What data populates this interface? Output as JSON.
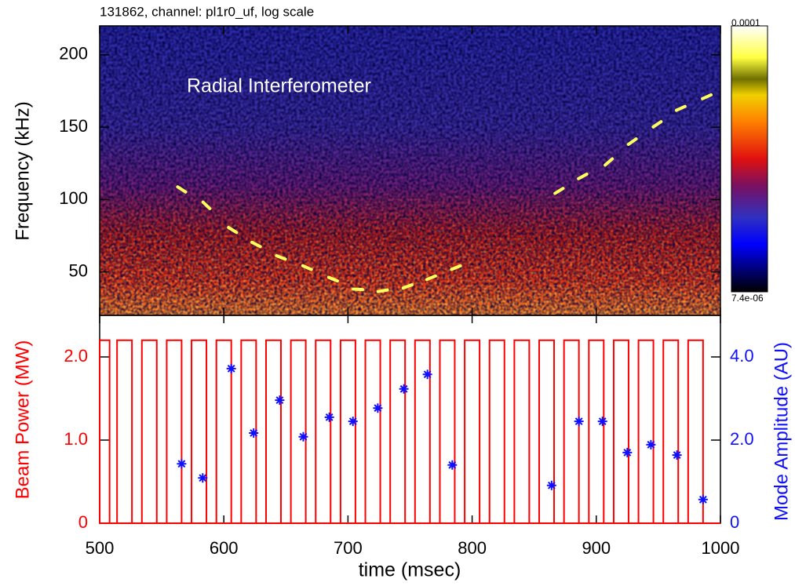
{
  "chart_data": [
    {
      "type": "spectrogram",
      "title": "131862, channel: pl1r0_uf, log scale",
      "annotation": "Radial Interferometer",
      "ylabel": "Frequency (kHz)",
      "xlim": [
        500,
        1000
      ],
      "xticks": [
        500,
        600,
        700,
        800,
        900,
        1000
      ],
      "ylim": [
        20,
        220
      ],
      "yticks": [
        50,
        100,
        150,
        200
      ],
      "colorbar_ticks": [
        {
          "value": 7.4e-06,
          "label": "7.4e-06"
        },
        0.0001
      ],
      "traces": [
        {
          "color": "#ffff60",
          "x": [
            566,
            586,
            607,
            626,
            646,
            667,
            688,
            708,
            728,
            748,
            767,
            787
          ],
          "values": [
            107,
            96,
            79,
            69,
            60,
            53,
            45,
            38,
            37,
            40,
            46,
            53
          ]
        },
        {
          "color": "#ffff60",
          "x": [
            870,
            889,
            910,
            929,
            949,
            968,
            989
          ],
          "values": [
            106,
            116,
            126,
            140,
            152,
            163,
            171
          ]
        }
      ]
    },
    {
      "type": "pulse_scatter",
      "xlabel": "time (msec)",
      "ylabel": "Beam Power (MW)",
      "y2label": "Mode Amplitude (AU)",
      "xlim": [
        500,
        1000
      ],
      "xticks": [
        500,
        600,
        700,
        800,
        900,
        1000
      ],
      "ylim": [
        0,
        2.5
      ],
      "yticks": [
        0,
        {
          "value": 1,
          "label": "1.0"
        },
        {
          "value": 2,
          "label": "2.0"
        }
      ],
      "y2lim": [
        0,
        5
      ],
      "y2ticks": [
        0,
        {
          "value": 2,
          "label": "2.0"
        },
        {
          "value": 4,
          "label": "4.0"
        }
      ],
      "series": [
        {
          "color": "#ff0000",
          "x_on": [
            500,
            514,
            534,
            554,
            574,
            594,
            614,
            634,
            654,
            674,
            694,
            714,
            734,
            754,
            774,
            794,
            814,
            834,
            854,
            874,
            894,
            914,
            934,
            954,
            974
          ],
          "x_off": [
            508,
            526,
            546,
            566,
            586,
            606,
            626,
            646,
            666,
            686,
            706,
            726,
            746,
            766,
            786,
            806,
            826,
            846,
            866,
            886,
            906,
            926,
            946,
            966,
            986
          ],
          "values": [
            2.2,
            2.2,
            2.2,
            2.2,
            2.2,
            2.2,
            2.2,
            2.2,
            2.2,
            2.2,
            2.2,
            2.2,
            2.2,
            2.2,
            2.2,
            2.2,
            2.2,
            2.2,
            2.2,
            2.2,
            2.2,
            2.2,
            2.2,
            2.2,
            2.2
          ]
        },
        {
          "color": "#1010ff",
          "axis": "y2",
          "x": [
            566,
            583,
            606,
            624,
            645,
            664,
            685,
            704,
            724,
            745,
            764,
            784,
            864,
            886,
            905,
            925,
            944,
            965,
            986
          ],
          "values": [
            1.43,
            1.09,
            3.72,
            2.17,
            2.96,
            2.08,
            2.55,
            2.45,
            2.77,
            3.23,
            3.58,
            1.4,
            0.91,
            2.45,
            2.45,
            1.7,
            1.89,
            1.64,
            0.57
          ]
        }
      ]
    }
  ]
}
